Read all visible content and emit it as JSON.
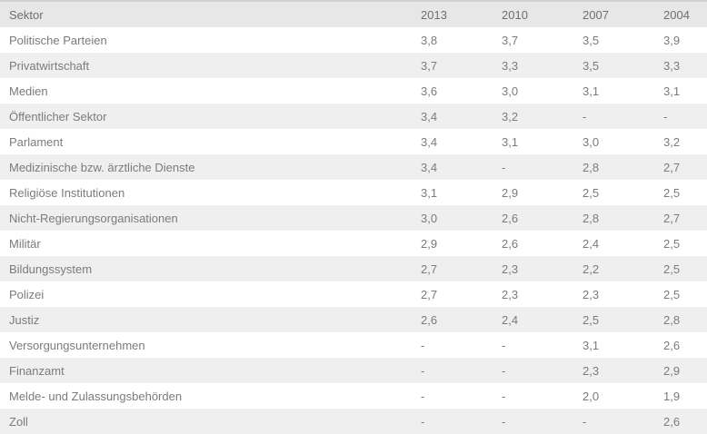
{
  "colors": {
    "header_bg": "#e7e7e7",
    "alt_row_bg": "#efefef",
    "text": "#7b7b7b",
    "header_text": "#6f6f6f",
    "top_border": "#d2d2d2"
  },
  "table": {
    "columns": [
      "Sektor",
      "2013",
      "2010",
      "2007",
      "2004"
    ],
    "rows": [
      {
        "label": "Politische Parteien",
        "values": [
          "3,8",
          "3,7",
          "3,5",
          "3,9"
        ]
      },
      {
        "label": "Privatwirtschaft",
        "values": [
          "3,7",
          "3,3",
          "3,5",
          "3,3"
        ]
      },
      {
        "label": "Medien",
        "values": [
          "3,6",
          "3,0",
          "3,1",
          "3,1"
        ]
      },
      {
        "label": "Öffentlicher Sektor",
        "values": [
          "3,4",
          "3,2",
          "-",
          "-"
        ]
      },
      {
        "label": "Parlament",
        "values": [
          "3,4",
          "3,1",
          "3,0",
          "3,2"
        ]
      },
      {
        "label": "Medizinische bzw. ärztliche Dienste",
        "values": [
          "3,4",
          "-",
          "2,8",
          "2,7"
        ]
      },
      {
        "label": "Religiöse Institutionen",
        "values": [
          "3,1",
          "2,9",
          "2,5",
          "2,5"
        ]
      },
      {
        "label": "Nicht-Regierungsorganisationen",
        "values": [
          "3,0",
          "2,6",
          "2,8",
          "2,7"
        ]
      },
      {
        "label": "Militär",
        "values": [
          "2,9",
          "2,6",
          "2,4",
          "2,5"
        ]
      },
      {
        "label": "Bildungssystem",
        "values": [
          "2,7",
          "2,3",
          "2,2",
          "2,5"
        ]
      },
      {
        "label": "Polizei",
        "values": [
          "2,7",
          "2,3",
          "2,3",
          "2,5"
        ]
      },
      {
        "label": "Justiz",
        "values": [
          "2,6",
          "2,4",
          "2,5",
          "2,8"
        ]
      },
      {
        "label": "Versorgungsunternehmen",
        "values": [
          "-",
          "-",
          "3,1",
          "2,6"
        ]
      },
      {
        "label": "Finanzamt",
        "values": [
          "-",
          "-",
          "2,3",
          "2,9"
        ]
      },
      {
        "label": "Melde- und Zulassungsbehörden",
        "values": [
          "-",
          "-",
          "2,0",
          "1,9"
        ]
      },
      {
        "label": "Zoll",
        "values": [
          "-",
          "-",
          "-",
          "2,6"
        ]
      }
    ]
  },
  "chart_data": {
    "type": "table",
    "title": "",
    "columns": [
      "Sektor",
      "2013",
      "2010",
      "2007",
      "2004"
    ],
    "categories": [
      "Politische Parteien",
      "Privatwirtschaft",
      "Medien",
      "Öffentlicher Sektor",
      "Parlament",
      "Medizinische bzw. ärztliche Dienste",
      "Religiöse Institutionen",
      "Nicht-Regierungsorganisationen",
      "Militär",
      "Bildungssystem",
      "Polizei",
      "Justiz",
      "Versorgungsunternehmen",
      "Finanzamt",
      "Melde- und Zulassungsbehörden",
      "Zoll"
    ],
    "series": [
      {
        "name": "2013",
        "values": [
          3.8,
          3.7,
          3.6,
          3.4,
          3.4,
          3.4,
          3.1,
          3.0,
          2.9,
          2.7,
          2.7,
          2.6,
          null,
          null,
          null,
          null
        ]
      },
      {
        "name": "2010",
        "values": [
          3.7,
          3.3,
          3.0,
          3.2,
          3.1,
          null,
          2.9,
          2.6,
          2.6,
          2.3,
          2.3,
          2.4,
          null,
          null,
          null,
          null
        ]
      },
      {
        "name": "2007",
        "values": [
          3.5,
          3.5,
          3.1,
          null,
          3.0,
          2.8,
          2.5,
          2.8,
          2.4,
          2.2,
          2.3,
          2.5,
          3.1,
          2.3,
          2.0,
          null
        ]
      },
      {
        "name": "2004",
        "values": [
          3.9,
          3.3,
          3.1,
          null,
          3.2,
          2.7,
          2.5,
          2.7,
          2.5,
          2.5,
          2.5,
          2.8,
          2.6,
          2.9,
          1.9,
          2.6
        ]
      }
    ],
    "missing_value_marker": "-",
    "decimal_separator": ","
  }
}
